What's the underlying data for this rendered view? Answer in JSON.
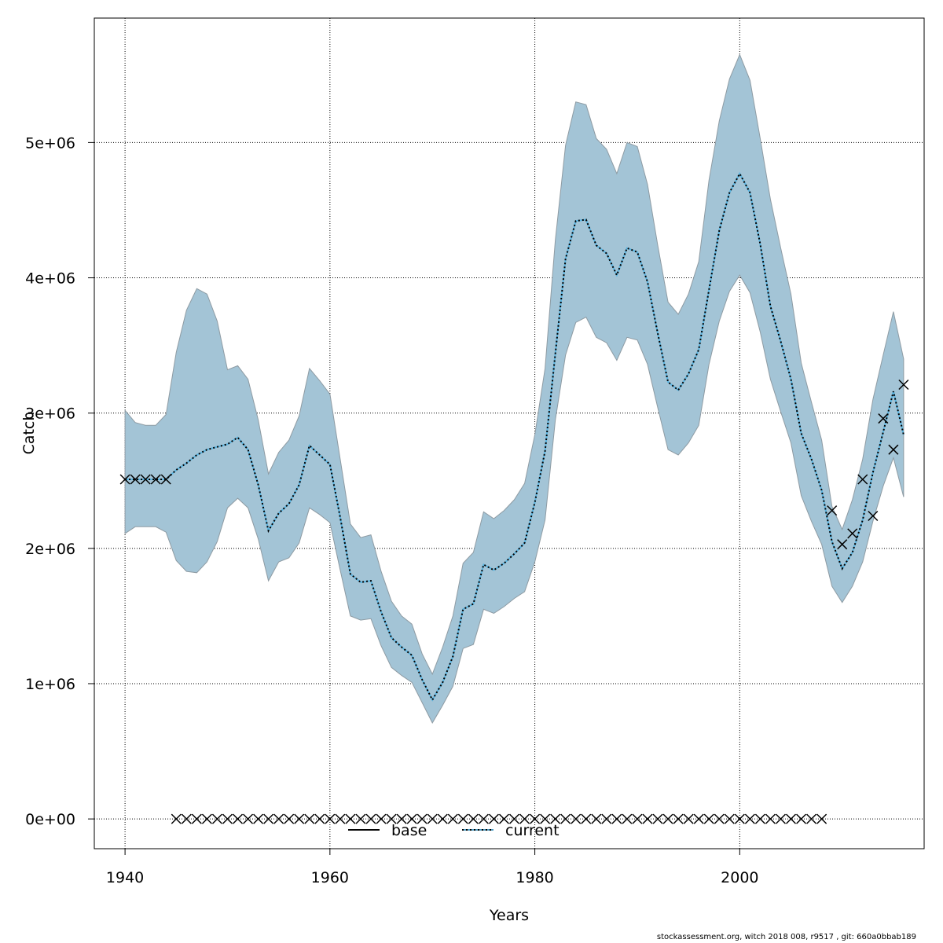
{
  "chart_data": {
    "type": "line",
    "title": "",
    "xlabel": "Years",
    "ylabel": "Catch",
    "xlim": [
      1937,
      2018
    ],
    "ylim": [
      -220000,
      5920000
    ],
    "grid": true,
    "x_ticks": [
      1940,
      1960,
      1980,
      2000
    ],
    "x_tick_labels": [
      "1940",
      "1960",
      "1980",
      "2000"
    ],
    "y_ticks": [
      0,
      1000000,
      2000000,
      3000000,
      4000000,
      5000000
    ],
    "y_tick_labels": [
      "0e+00",
      "1e+06",
      "2e+06",
      "3e+06",
      "4e+06",
      "5e+06"
    ],
    "legend": {
      "placement": "bottom-center",
      "entries": [
        {
          "label": "base",
          "style": "solid",
          "color": "#000000"
        },
        {
          "label": "current",
          "style": "dotted",
          "color": "#4f9ec4"
        }
      ]
    },
    "colors": {
      "band": "#a3c4d6",
      "band_edge": "#8e9ba3",
      "line": "#5ab4e0",
      "dash": "#000000"
    },
    "years": [
      1940,
      1941,
      1942,
      1943,
      1944,
      1945,
      1946,
      1947,
      1948,
      1949,
      1950,
      1951,
      1952,
      1953,
      1954,
      1955,
      1956,
      1957,
      1958,
      1959,
      1960,
      1961,
      1962,
      1963,
      1964,
      1965,
      1966,
      1967,
      1968,
      1969,
      1970,
      1971,
      1972,
      1973,
      1974,
      1975,
      1976,
      1977,
      1978,
      1979,
      1980,
      1981,
      1982,
      1983,
      1984,
      1985,
      1986,
      1987,
      1988,
      1989,
      1990,
      1991,
      1992,
      1993,
      1994,
      1995,
      1996,
      1997,
      1998,
      1999,
      2000,
      2001,
      2002,
      2003,
      2004,
      2005,
      2006,
      2007,
      2008,
      2009,
      2010,
      2011,
      2012,
      2013,
      2014,
      2015,
      2016
    ],
    "series": [
      {
        "name": "current",
        "values_millions": [
          2.51,
          2.51,
          2.51,
          2.51,
          2.51,
          2.58,
          2.63,
          2.69,
          2.73,
          2.75,
          2.77,
          2.82,
          2.73,
          2.47,
          2.13,
          2.26,
          2.33,
          2.47,
          2.76,
          2.69,
          2.62,
          2.23,
          1.81,
          1.75,
          1.76,
          1.53,
          1.34,
          1.27,
          1.21,
          1.03,
          0.88,
          1.01,
          1.2,
          1.55,
          1.59,
          1.88,
          1.84,
          1.89,
          1.96,
          2.04,
          2.34,
          2.72,
          3.44,
          4.14,
          4.42,
          4.43,
          4.24,
          4.18,
          4.02,
          4.22,
          4.19,
          3.97,
          3.59,
          3.23,
          3.17,
          3.29,
          3.47,
          3.91,
          4.35,
          4.63,
          4.77,
          4.63,
          4.25,
          3.79,
          3.53,
          3.25,
          2.85,
          2.66,
          2.43,
          2.05,
          1.85,
          1.97,
          2.21,
          2.56,
          2.86,
          3.16,
          2.84
        ]
      },
      {
        "name": "upper",
        "values_millions": [
          3.02,
          2.93,
          2.91,
          2.91,
          2.99,
          3.45,
          3.76,
          3.92,
          3.88,
          3.68,
          3.32,
          3.35,
          3.25,
          2.95,
          2.55,
          2.71,
          2.8,
          2.98,
          3.33,
          3.24,
          3.14,
          2.66,
          2.18,
          2.08,
          2.1,
          1.83,
          1.61,
          1.5,
          1.44,
          1.22,
          1.07,
          1.27,
          1.5,
          1.89,
          1.97,
          2.27,
          2.22,
          2.28,
          2.36,
          2.48,
          2.84,
          3.33,
          4.28,
          4.98,
          5.3,
          5.28,
          5.03,
          4.95,
          4.77,
          5.0,
          4.97,
          4.69,
          4.24,
          3.82,
          3.73,
          3.88,
          4.12,
          4.72,
          5.16,
          5.47,
          5.65,
          5.46,
          5.03,
          4.58,
          4.22,
          3.88,
          3.37,
          3.08,
          2.8,
          2.31,
          2.14,
          2.36,
          2.66,
          3.1,
          3.43,
          3.75,
          3.4
        ]
      },
      {
        "name": "lower",
        "values_millions": [
          2.11,
          2.16,
          2.16,
          2.16,
          2.12,
          1.91,
          1.83,
          1.82,
          1.9,
          2.05,
          2.3,
          2.37,
          2.3,
          2.07,
          1.76,
          1.9,
          1.93,
          2.04,
          2.3,
          2.25,
          2.19,
          1.84,
          1.5,
          1.47,
          1.48,
          1.28,
          1.12,
          1.06,
          1.01,
          0.86,
          0.71,
          0.84,
          0.98,
          1.26,
          1.29,
          1.55,
          1.52,
          1.57,
          1.63,
          1.68,
          1.9,
          2.21,
          2.95,
          3.43,
          3.67,
          3.71,
          3.56,
          3.52,
          3.39,
          3.56,
          3.54,
          3.36,
          3.04,
          2.73,
          2.69,
          2.78,
          2.91,
          3.36,
          3.68,
          3.9,
          4.02,
          3.89,
          3.6,
          3.25,
          3.01,
          2.78,
          2.39,
          2.2,
          2.03,
          1.72,
          1.6,
          1.72,
          1.9,
          2.2,
          2.46,
          2.67,
          2.38
        ]
      }
    ],
    "observations": {
      "years": [
        1940,
        1941,
        1942,
        1943,
        1944,
        1945,
        1946,
        1947,
        1948,
        1949,
        1950,
        1951,
        1952,
        1953,
        1954,
        1955,
        1956,
        1957,
        1958,
        1959,
        1960,
        1961,
        1962,
        1963,
        1964,
        1965,
        1966,
        1967,
        1968,
        1969,
        1970,
        1971,
        1972,
        1973,
        1974,
        1975,
        1976,
        1977,
        1978,
        1979,
        1980,
        1981,
        1982,
        1983,
        1984,
        1985,
        1986,
        1987,
        1988,
        1989,
        1990,
        1991,
        1992,
        1993,
        1994,
        1995,
        1996,
        1997,
        1998,
        1999,
        2000,
        2001,
        2002,
        2003,
        2004,
        2005,
        2006,
        2007,
        2008,
        2009,
        2010,
        2011,
        2012,
        2013,
        2014,
        2015,
        2016
      ],
      "values_millions": [
        2.51,
        2.51,
        2.51,
        2.51,
        2.51,
        0,
        0,
        0,
        0,
        0,
        0,
        0,
        0,
        0,
        0,
        0,
        0,
        0,
        0,
        0,
        0,
        0,
        0,
        0,
        0,
        0,
        0,
        0,
        0,
        0,
        0,
        0,
        0,
        0,
        0,
        0,
        0,
        0,
        0,
        0,
        0,
        0,
        0,
        0,
        0,
        0,
        0,
        0,
        0,
        0,
        0,
        0,
        0,
        0,
        0,
        0,
        0,
        0,
        0,
        0,
        0,
        0,
        0,
        0,
        0,
        0,
        0,
        0,
        0,
        2.28,
        2.03,
        2.11,
        2.51,
        2.24,
        2.96,
        2.73,
        3.21
      ]
    }
  },
  "footer": "stockassessment.org, witch  2018  008, r9517 , git: 660a0bbab189"
}
